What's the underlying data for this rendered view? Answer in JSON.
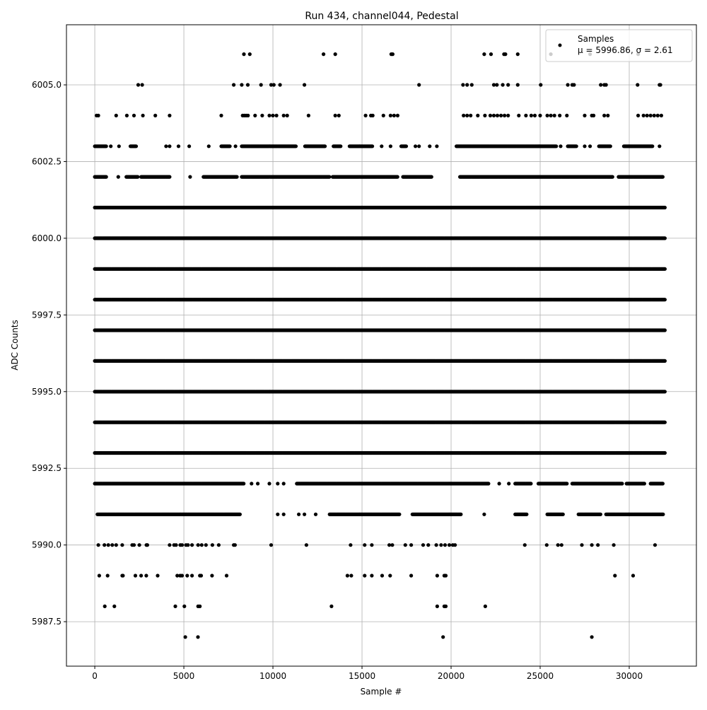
{
  "chart_data": {
    "type": "scatter",
    "title": "Run 434, channel044, Pedestal",
    "xlabel": "Sample #",
    "ylabel": "ADC Counts",
    "xlim": [
      -1590,
      33770
    ],
    "ylim": [
      5986.05,
      6006.96
    ],
    "xticks": [
      0,
      5000,
      10000,
      15000,
      20000,
      25000,
      30000
    ],
    "xtick_labels": [
      "0",
      "5000",
      "10000",
      "15000",
      "20000",
      "25000",
      "30000"
    ],
    "yticks": [
      5987.5,
      5990,
      5992.5,
      5995,
      5997.5,
      6000,
      6002.5,
      6005
    ],
    "ytick_labels": [
      "5987.5",
      "5990.0",
      "5992.5",
      "5995.0",
      "5997.5",
      "6000.0",
      "6002.5",
      "6005.0"
    ],
    "grid": true,
    "marker_color": "#000000",
    "legend": {
      "placement": "top-right",
      "entries": [
        "Samples",
        "μ = 5996.86, σ = 2.61"
      ]
    },
    "levels": [
      {
        "y": 6006,
        "x_ranges": [],
        "x_points": [
          8370,
          8700,
          12840,
          13500,
          16640,
          16720,
          21860,
          22240,
          22970,
          23050,
          23740,
          25600,
          27800,
          30500
        ]
      },
      {
        "y": 6005,
        "x_ranges": [],
        "x_points": [
          2440,
          2660,
          7800,
          8250,
          8590,
          9330,
          9900,
          10050,
          10400,
          11770,
          18200,
          20670,
          20900,
          21160,
          22400,
          22570,
          22900,
          23200,
          23740,
          25030,
          26550,
          26800,
          26900,
          28400,
          28600,
          28700,
          30470,
          31700,
          31750
        ]
      },
      {
        "y": 6004,
        "x_ranges": [],
        "x_points": [
          100,
          200,
          1200,
          1800,
          2200,
          2700,
          3400,
          4200,
          7100,
          8300,
          8400,
          8500,
          8600,
          9000,
          9400,
          9800,
          10000,
          10200,
          10600,
          10800,
          12000,
          13500,
          13700,
          15200,
          15500,
          15600,
          16200,
          16600,
          16800,
          17000,
          20700,
          20900,
          21100,
          21500,
          21900,
          22200,
          22400,
          22600,
          22800,
          23000,
          23200,
          23800,
          24200,
          24500,
          24700,
          25000,
          25400,
          25600,
          25800,
          26100,
          26500,
          27500,
          27900,
          28000,
          28600,
          28800,
          30500,
          30800,
          31000,
          31200,
          31400,
          31600,
          31800
        ]
      },
      {
        "y": 6003,
        "x_ranges": [
          [
            0,
            650
          ],
          [
            2000,
            2330
          ],
          [
            7100,
            7600
          ],
          [
            8250,
            11300
          ],
          [
            11800,
            12950
          ],
          [
            13400,
            13800
          ],
          [
            14300,
            15600
          ],
          [
            17200,
            17500
          ],
          [
            20300,
            25900
          ],
          [
            26550,
            27050
          ],
          [
            28300,
            28950
          ],
          [
            29700,
            31300
          ]
        ],
        "x_points": [
          900,
          1360,
          4000,
          4200,
          4700,
          5300,
          6400,
          7900,
          16100,
          16600,
          18000,
          18200,
          18800,
          19200,
          26150,
          27500,
          27800,
          31700
        ]
      },
      {
        "y": 6002,
        "x_ranges": [
          [
            0,
            650
          ],
          [
            1770,
            2440
          ],
          [
            2600,
            4200
          ],
          [
            6100,
            8000
          ],
          [
            8250,
            13200
          ],
          [
            13350,
            17000
          ],
          [
            17300,
            18900
          ],
          [
            20500,
            29060
          ],
          [
            29400,
            31900
          ]
        ],
        "x_points": [
          1320,
          5350
        ]
      },
      {
        "y": 6001,
        "x_ranges": [
          [
            0,
            32000
          ]
        ],
        "x_points": []
      },
      {
        "y": 6000,
        "x_ranges": [
          [
            0,
            32000
          ]
        ],
        "x_points": []
      },
      {
        "y": 5999,
        "x_ranges": [
          [
            0,
            32000
          ]
        ],
        "x_points": []
      },
      {
        "y": 5998,
        "x_ranges": [
          [
            0,
            32000
          ]
        ],
        "x_points": []
      },
      {
        "y": 5997,
        "x_ranges": [
          [
            0,
            32000
          ]
        ],
        "x_points": []
      },
      {
        "y": 5996,
        "x_ranges": [
          [
            0,
            32000
          ]
        ],
        "x_points": []
      },
      {
        "y": 5995,
        "x_ranges": [
          [
            0,
            32000
          ]
        ],
        "x_points": []
      },
      {
        "y": 5994,
        "x_ranges": [
          [
            0,
            32000
          ]
        ],
        "x_points": []
      },
      {
        "y": 5993,
        "x_ranges": [
          [
            0,
            32000
          ]
        ],
        "x_points": []
      },
      {
        "y": 5992,
        "x_ranges": [
          [
            0,
            8370
          ],
          [
            11340,
            22100
          ],
          [
            23600,
            24500
          ],
          [
            24900,
            26500
          ],
          [
            26800,
            29600
          ],
          [
            29850,
            30850
          ],
          [
            31200,
            31900
          ]
        ],
        "x_points": [
          8800,
          9150,
          9800,
          10270,
          10600,
          22700,
          23240
        ]
      },
      {
        "y": 5991,
        "x_ranges": [
          [
            150,
            8150
          ],
          [
            13180,
            17100
          ],
          [
            17830,
            20560
          ],
          [
            23600,
            24250
          ],
          [
            25400,
            26300
          ],
          [
            27150,
            28400
          ],
          [
            28700,
            31900
          ]
        ],
        "x_points": [
          10270,
          10600,
          11450,
          11770,
          12400,
          21860
        ]
      },
      {
        "y": 5990,
        "x_ranges": [],
        "x_points": [
          200,
          540,
          760,
          980,
          1200,
          1540,
          2100,
          2200,
          2500,
          2900,
          2950,
          4200,
          4450,
          4560,
          4800,
          4900,
          5120,
          5230,
          5460,
          5800,
          6000,
          6240,
          6600,
          6960,
          7800,
          7870,
          9900,
          11880,
          14360,
          15150,
          15550,
          16530,
          16700,
          17430,
          17760,
          18430,
          18720,
          19170,
          19440,
          19660,
          19900,
          20100,
          20220,
          24140,
          25370,
          26000,
          26200,
          27340,
          27900,
          28240,
          29130,
          31450
        ]
      },
      {
        "y": 5989,
        "x_ranges": [],
        "x_points": [
          250,
          720,
          1540,
          1580,
          2280,
          2600,
          2890,
          3530,
          4630,
          4790,
          4900,
          5190,
          5460,
          5900,
          5970,
          6580,
          7400,
          14180,
          14400,
          15150,
          15550,
          16130,
          16580,
          17760,
          19220,
          19620,
          19700,
          29200,
          30220
        ]
      },
      {
        "y": 5988,
        "x_ranges": [],
        "x_points": [
          560,
          1100,
          4520,
          5030,
          5800,
          5900,
          13290,
          19220,
          19620,
          19700,
          21920
        ]
      },
      {
        "y": 5987,
        "x_ranges": [],
        "x_points": [
          5080,
          5790,
          19550,
          27900
        ]
      }
    ]
  }
}
